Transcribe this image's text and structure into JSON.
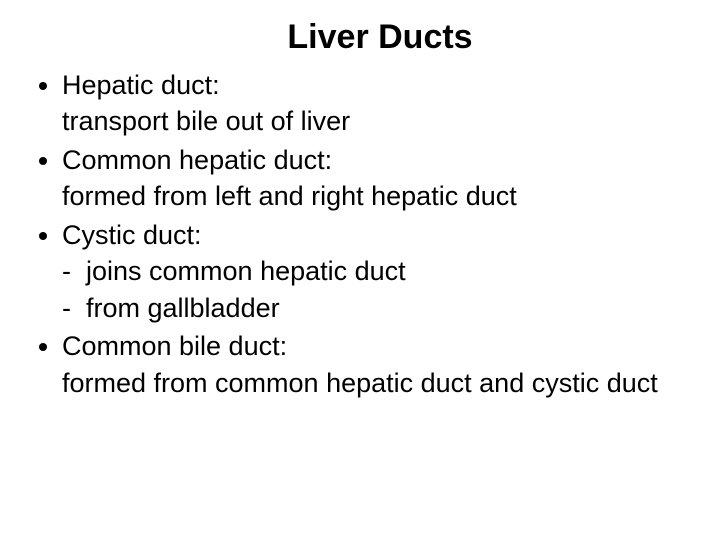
{
  "slide": {
    "title": "Liver Ducts",
    "title_fontsize": 34,
    "body_fontsize": 27,
    "background_color": "#ffffff",
    "text_color": "#000000",
    "font_family": "Arial",
    "items": [
      {
        "term": "Hepatic duct:",
        "desc": "transport bile out of liver"
      },
      {
        "term": "Common hepatic duct:",
        "desc": "formed from left and right hepatic duct"
      },
      {
        "term": "Cystic duct:",
        "sub": [
          "joins common hepatic duct",
          "from gallbladder"
        ]
      },
      {
        "term": "Common bile duct:",
        "desc": "formed from common hepatic duct and cystic duct"
      }
    ]
  }
}
